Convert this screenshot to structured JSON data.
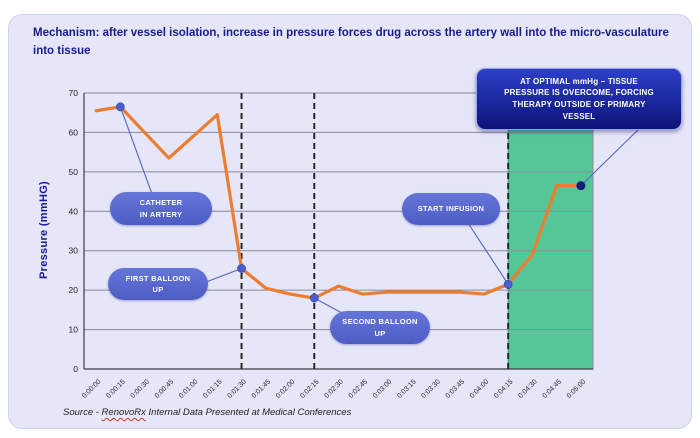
{
  "page": {
    "title": "Mechanism: after vessel isolation, increase in pressure forces drug across the artery wall into the micro-vasculature into tissue",
    "source": {
      "prefix": "Source - ",
      "brand": "RenovoRx",
      "suffix": " Internal Data Presented at Medical Conferences"
    }
  },
  "chart_data": {
    "type": "line",
    "title": "",
    "xlabel": "",
    "ylabel": "Pressure (mmHG)",
    "ylim": [
      0,
      70
    ],
    "y_ticks": [
      0,
      10,
      20,
      30,
      40,
      50,
      60,
      70
    ],
    "grid": true,
    "legend": "none",
    "categories": [
      "0:00:00",
      "0:00:15",
      "0:00:30",
      "0:00:45",
      "0:01:00",
      "0:01:15",
      "0:01:30",
      "0:01:45",
      "0:02:00",
      "0:02:15",
      "0:02:30",
      "0:02:45",
      "0:03:00",
      "0:03:15",
      "0:03:30",
      "0:03:45",
      "0:04:00",
      "0:04:15",
      "0:04:30",
      "0:04:45",
      "0:05:00"
    ],
    "series": [
      {
        "name": "Pressure (mmHG)",
        "values": [
          65.5,
          66.5,
          60,
          53.5,
          59,
          64.5,
          25.5,
          20.5,
          19,
          18,
          21,
          19,
          19.5,
          19.5,
          19.5,
          19.5,
          19,
          21.5,
          29,
          46.5,
          46.5
        ]
      }
    ],
    "markers": {
      "point_indices": [
        1,
        6,
        9,
        17
      ],
      "final_index": 20
    },
    "dashed_vlines": {
      "times": [
        "0:01:30",
        "0:02:15",
        "0:04:15"
      ],
      "indices": [
        6,
        9,
        17
      ]
    },
    "highlight_region": {
      "from": "0:04:15",
      "to": "0:05:00",
      "from_index": 17,
      "top_value": 61,
      "color": "#55c696"
    },
    "annotations": [
      {
        "target": "0:00:15",
        "target_index": 1,
        "lines": [
          "CATHETER",
          "IN ARTERY"
        ]
      },
      {
        "target": "0:01:30",
        "target_index": 6,
        "lines": [
          "FIRST BALLOON",
          "UP"
        ]
      },
      {
        "target": "0:02:15",
        "target_index": 9,
        "lines": [
          "SECOND BALLOON",
          "UP"
        ]
      },
      {
        "target": "0:04:15",
        "target_index": 17,
        "lines": [
          "START INFUSION"
        ]
      },
      {
        "target": "0:05:00",
        "target_index": 20,
        "lines": [
          "AT OPTIMAL mmHg – TISSUE",
          "PRESSURE IS OVERCOME, FORCING",
          "THERAPY OUTSIDE OF PRIMARY",
          "VESSEL"
        ]
      }
    ],
    "colors": {
      "line": "#ED7D31",
      "marker": "#4a5ed0",
      "final_marker": "#141d7a",
      "region": "#55c696",
      "bubble": "#5a69cc",
      "callout_top": "#2c40c8",
      "callout_bottom": "#0d1377",
      "title_text": "#1a1a8f"
    }
  }
}
